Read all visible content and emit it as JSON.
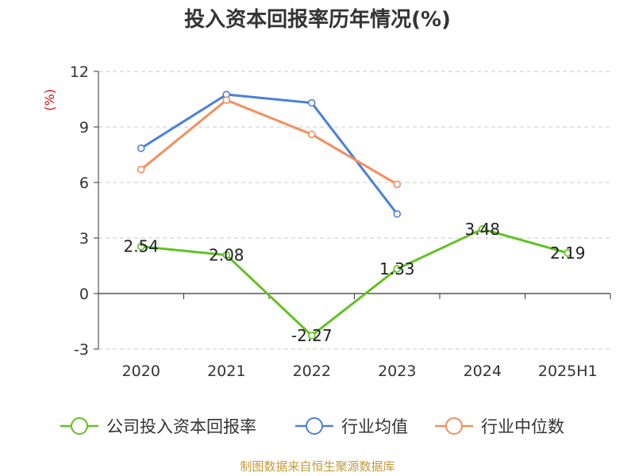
{
  "chart_data": {
    "type": "line",
    "title": "投入资本回报率历年情况(%)",
    "ylabel": "(%)",
    "categories": [
      "2020",
      "2021",
      "2022",
      "2023",
      "2024",
      "2025H1"
    ],
    "yticks": [
      "12",
      "9",
      "6",
      "3",
      "0",
      "-3"
    ],
    "ylim": [
      -3,
      12
    ],
    "grid": "horizontal dashed",
    "legend_position": "bottom",
    "series": [
      {
        "name": "公司投入资本回报率",
        "color": "#62c025",
        "values": [
          2.54,
          2.08,
          -2.27,
          1.33,
          3.48,
          2.19
        ],
        "labels": [
          "2.54",
          "2.08",
          "-2.27",
          "1.33",
          "3.48",
          "2.19"
        ]
      },
      {
        "name": "行业均值",
        "color": "#4b80d8",
        "values": [
          7.85,
          10.75,
          10.3,
          4.3,
          null,
          null
        ]
      },
      {
        "name": "行业中位数",
        "color": "#f58e5d",
        "values": [
          6.7,
          10.45,
          8.6,
          5.9,
          null,
          null
        ]
      }
    ],
    "source": "制图数据来自恒生聚源数据库"
  }
}
